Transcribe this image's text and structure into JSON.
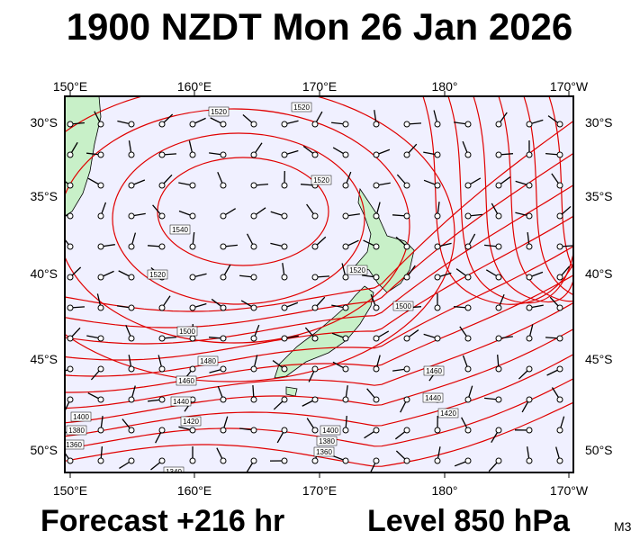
{
  "header": {
    "title": "1900 NZDT Mon 26 Jan 2026"
  },
  "map": {
    "lon_labels": [
      "150°E",
      "160°E",
      "170°E",
      "180°",
      "170°W"
    ],
    "lat_labels": [
      "30°S",
      "35°S",
      "40°S",
      "45°S",
      "50°S"
    ],
    "contour_labels": [
      "1520",
      "1520",
      "1520",
      "1540",
      "1520",
      "1520",
      "1500",
      "1500",
      "1480",
      "1460",
      "1460",
      "1440",
      "1440",
      "1420",
      "1420",
      "1400",
      "1380",
      "1400",
      "1380",
      "1360",
      "1360",
      "1340"
    ]
  },
  "footer": {
    "forecast": "Forecast +216 hr",
    "level": "Level 850 hPa",
    "code": "M3"
  }
}
